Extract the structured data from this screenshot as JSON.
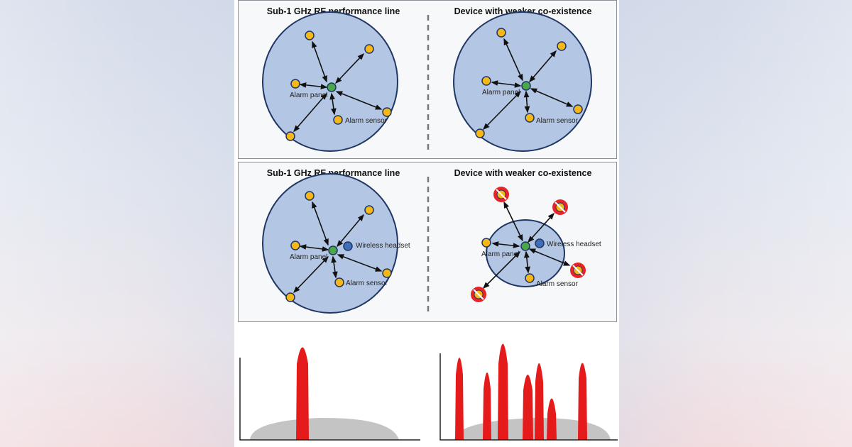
{
  "diagram": {
    "panel1": {
      "left_title": "Sub-1 GHz RF performance line",
      "right_title": "Device with weaker co-existence",
      "left_labels": {
        "panel": "Alarm panel",
        "sensor": "Alarm sensor"
      },
      "right_labels": {
        "panel": "Alarm panel",
        "sensor": "Alarm sensor"
      }
    },
    "panel2": {
      "left_title": "Sub-1 GHz RF performance line",
      "right_title": "Device with weaker co-existence",
      "left_labels": {
        "panel": "Alarm panel",
        "sensor": "Alarm sensor",
        "headset": "Wireless headset"
      },
      "right_labels": {
        "panel": "Alarm panel",
        "sensor": "Alarm sensor",
        "headset": "Wireless headset"
      }
    }
  },
  "colors": {
    "network_fill": "#b3c6e4",
    "network_stroke": "#1f3563",
    "sensor_node": "#f6b817",
    "panel_node": "#4aa84a",
    "headset_node": "#3f6fb6",
    "blocked_node": "#e8242a",
    "spectrum_peak": "#e51b1b",
    "noise_floor": "#c4c4c4"
  },
  "icons": {
    "blocked": "no-entry-icon"
  }
}
